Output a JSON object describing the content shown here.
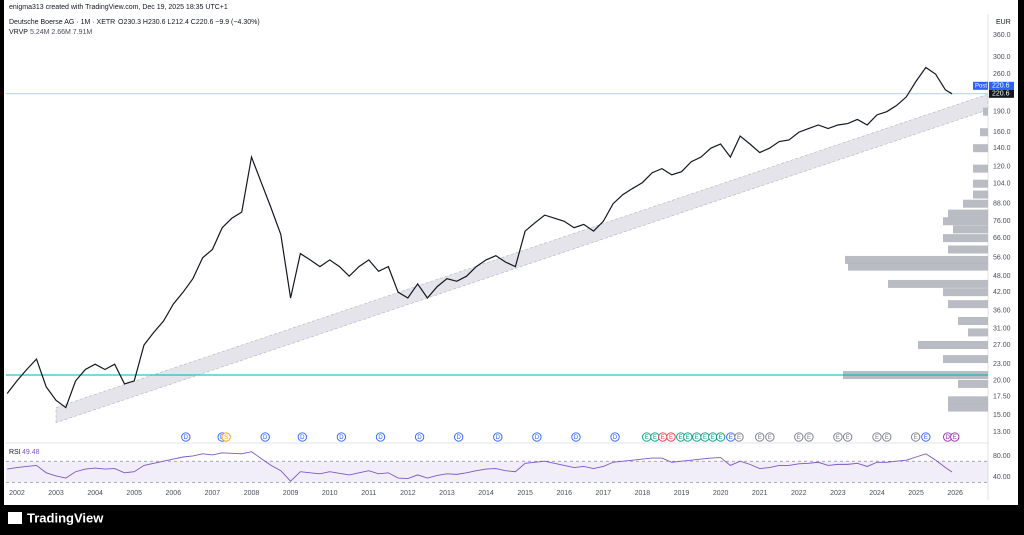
{
  "header": {
    "credit": "enigma313 created with TradingView.com, Dec 19, 2025 18:35 UTC+1",
    "symbol": "Deutsche Boerse AG · 1M · XETR",
    "ohlc": "O230.3  H230.6  L212.4  C220.6  −9.9 (−4.30%)",
    "indicator": "VRVP",
    "indicator_values": "5.24M  2.66M  7.91M",
    "currency": "EUR"
  },
  "footer": {
    "brand": "TradingView"
  },
  "chart_data": {
    "type": "line",
    "log_scale": true,
    "color": "#131722",
    "xlim": [
      2001.72,
      2026.84
    ],
    "ylim": [
      12.2,
      430
    ],
    "xticks": [
      2002,
      2003,
      2004,
      2005,
      2006,
      2007,
      2008,
      2009,
      2010,
      2011,
      2012,
      2013,
      2014,
      2015,
      2016,
      2017,
      2018,
      2019,
      2020,
      2021,
      2022,
      2023,
      2024,
      2025,
      2026
    ],
    "yticks": [
      {
        "value": 13,
        "label": "13.00"
      },
      {
        "value": 15,
        "label": "15.00"
      },
      {
        "value": 17.5,
        "label": "17.50"
      },
      {
        "value": 20,
        "label": "20.00"
      },
      {
        "value": 23,
        "label": "23.00"
      },
      {
        "value": 27,
        "label": "27.00"
      },
      {
        "value": 31,
        "label": "31.00"
      },
      {
        "value": 36,
        "label": "36.00"
      },
      {
        "value": 42,
        "label": "42.00"
      },
      {
        "value": 48,
        "label": "48.00"
      },
      {
        "value": 56,
        "label": "56.00"
      },
      {
        "value": 66,
        "label": "66.00"
      },
      {
        "value": 76,
        "label": "76.00"
      },
      {
        "value": 88,
        "label": "88.00"
      },
      {
        "value": 104,
        "label": "104.0"
      },
      {
        "value": 120,
        "label": "120.0"
      },
      {
        "value": 140,
        "label": "140.0"
      },
      {
        "value": 160,
        "label": "160.0"
      },
      {
        "value": 190,
        "label": "190.0"
      },
      {
        "value": 260,
        "label": "260.0"
      },
      {
        "value": 300,
        "label": "300.0"
      },
      {
        "value": 360,
        "label": "360.0"
      }
    ],
    "x": [
      2001.75,
      2002,
      2002.25,
      2002.5,
      2002.75,
      2003,
      2003.25,
      2003.5,
      2003.75,
      2004,
      2004.25,
      2004.5,
      2004.75,
      2005,
      2005.25,
      2005.5,
      2005.75,
      2006,
      2006.25,
      2006.5,
      2006.75,
      2007,
      2007.25,
      2007.5,
      2007.75,
      2008,
      2008.25,
      2008.5,
      2008.75,
      2009,
      2009.25,
      2009.5,
      2009.75,
      2010,
      2010.25,
      2010.5,
      2010.75,
      2011,
      2011.25,
      2011.5,
      2011.75,
      2012,
      2012.25,
      2012.5,
      2012.75,
      2013,
      2013.25,
      2013.5,
      2013.75,
      2014,
      2014.25,
      2014.5,
      2014.75,
      2015,
      2015.25,
      2015.5,
      2015.75,
      2016,
      2016.25,
      2016.5,
      2016.75,
      2017,
      2017.25,
      2017.5,
      2017.75,
      2018,
      2018.25,
      2018.5,
      2018.75,
      2019,
      2019.25,
      2019.5,
      2019.75,
      2020,
      2020.25,
      2020.5,
      2020.75,
      2021,
      2021.25,
      2021.5,
      2021.75,
      2022,
      2022.25,
      2022.5,
      2022.75,
      2023,
      2023.25,
      2023.5,
      2023.75,
      2024,
      2024.25,
      2024.5,
      2024.75,
      2025,
      2025.25,
      2025.5,
      2025.75,
      2025.92
    ],
    "values": [
      18,
      20,
      22,
      24,
      19,
      17,
      16,
      20,
      22,
      23,
      22,
      23,
      19.5,
      20,
      27,
      30,
      33,
      38,
      42,
      47,
      56,
      60,
      72,
      78,
      82,
      130,
      105,
      85,
      68,
      40,
      58,
      55,
      52,
      55,
      52,
      48,
      52,
      55,
      50,
      52,
      42,
      40,
      45,
      40,
      44,
      47,
      46,
      48,
      52,
      55,
      57,
      54,
      52,
      70,
      75,
      80,
      78,
      76,
      72,
      74,
      70,
      76,
      88,
      95,
      100,
      105,
      114,
      118,
      112,
      115,
      125,
      130,
      140,
      145,
      130,
      155,
      145,
      135,
      140,
      148,
      150,
      160,
      165,
      170,
      165,
      170,
      172,
      178,
      170,
      185,
      190,
      200,
      215,
      245,
      275,
      260,
      228,
      220.6
    ],
    "hlines": [
      {
        "value": 220.6,
        "color": "#4dd0e1"
      },
      {
        "value": 21,
        "color": "#00acc1"
      }
    ],
    "channel": {
      "x": [
        2003,
        2026.84
      ],
      "lower": [
        14.1,
        193
      ],
      "upper": [
        16,
        220
      ],
      "color": "#e4e4ea"
    },
    "post_label": "Post",
    "post_price": 220.6,
    "last_price": 220.6,
    "volume_profile": {
      "color": "#b2b5be",
      "prices": [
        16,
        17,
        19.5,
        21,
        24,
        27,
        30,
        33,
        38,
        42,
        45,
        52,
        55,
        60,
        66,
        71,
        76,
        81,
        88,
        95,
        104,
        118,
        140,
        160,
        190
      ],
      "volumes": [
        40,
        40,
        30,
        145,
        45,
        70,
        20,
        30,
        40,
        45,
        100,
        140,
        143,
        40,
        45,
        35,
        45,
        40,
        25,
        15,
        15,
        15,
        15,
        8,
        5
      ]
    },
    "events": [
      {
        "x": 2006.32,
        "label": "D",
        "color": "#2962ff"
      },
      {
        "x": 2007.25,
        "label": "D",
        "color": "#2962ff"
      },
      {
        "x": 2007.35,
        "label": "S",
        "color": "#ff9800"
      },
      {
        "x": 2008.35,
        "label": "D",
        "color": "#2962ff"
      },
      {
        "x": 2009.3,
        "label": "D",
        "color": "#2962ff"
      },
      {
        "x": 2010.3,
        "label": "D",
        "color": "#2962ff"
      },
      {
        "x": 2011.3,
        "label": "D",
        "color": "#2962ff"
      },
      {
        "x": 2012.3,
        "label": "D",
        "color": "#2962ff"
      },
      {
        "x": 2013.3,
        "label": "D",
        "color": "#2962ff"
      },
      {
        "x": 2014.3,
        "label": "D",
        "color": "#2962ff"
      },
      {
        "x": 2015.3,
        "label": "D",
        "color": "#2962ff"
      },
      {
        "x": 2016.3,
        "label": "D",
        "color": "#2962ff"
      },
      {
        "x": 2017.3,
        "label": "D",
        "color": "#2962ff"
      },
      {
        "x": 2018.11,
        "label": "E",
        "color": "#089981"
      },
      {
        "x": 2018.32,
        "label": "E",
        "color": "#089981"
      },
      {
        "x": 2018.52,
        "label": "E",
        "color": "#f23645"
      },
      {
        "x": 2018.73,
        "label": "E",
        "color": "#f23645"
      },
      {
        "x": 2018.98,
        "label": "E",
        "color": "#089981"
      },
      {
        "x": 2019.16,
        "label": "E",
        "color": "#089981"
      },
      {
        "x": 2019.39,
        "label": "E",
        "color": "#089981"
      },
      {
        "x": 2019.6,
        "label": "E",
        "color": "#089981"
      },
      {
        "x": 2019.8,
        "label": "E",
        "color": "#089981"
      },
      {
        "x": 2020.0,
        "label": "E",
        "color": "#089981"
      },
      {
        "x": 2020.26,
        "label": "E",
        "color": "#2962ff"
      },
      {
        "x": 2020.47,
        "label": "E",
        "color": "#787b86"
      },
      {
        "x": 2021.0,
        "label": "E",
        "color": "#787b86"
      },
      {
        "x": 2021.26,
        "label": "E",
        "color": "#787b86"
      },
      {
        "x": 2022.0,
        "label": "E",
        "color": "#787b86"
      },
      {
        "x": 2022.26,
        "label": "E",
        "color": "#787b86"
      },
      {
        "x": 2023.0,
        "label": "E",
        "color": "#787b86"
      },
      {
        "x": 2023.25,
        "label": "E",
        "color": "#787b86"
      },
      {
        "x": 2024.0,
        "label": "E",
        "color": "#787b86"
      },
      {
        "x": 2024.25,
        "label": "E",
        "color": "#787b86"
      },
      {
        "x": 2024.99,
        "label": "E",
        "color": "#787b86"
      },
      {
        "x": 2025.25,
        "label": "E",
        "color": "#2962ff"
      },
      {
        "x": 2025.81,
        "label": "D",
        "color": "#9c27b0"
      },
      {
        "x": 2025.99,
        "label": "E",
        "color": "#9c27b0"
      }
    ],
    "rsi": {
      "name": "RSI",
      "last": 49.48,
      "color": "#7e57c2",
      "ylim": [
        21,
        97
      ],
      "yticks": [
        {
          "value": 40,
          "label": "40.00"
        },
        {
          "value": 80,
          "label": "80.00"
        }
      ],
      "band": [
        30,
        70
      ],
      "values": [
        55,
        58,
        60,
        62,
        48,
        42,
        38,
        50,
        55,
        57,
        55,
        56,
        48,
        50,
        62,
        66,
        70,
        74,
        78,
        80,
        84,
        82,
        86,
        85,
        84,
        88,
        75,
        62,
        52,
        32,
        50,
        48,
        46,
        50,
        47,
        44,
        48,
        52,
        46,
        48,
        38,
        37,
        44,
        38,
        43,
        46,
        45,
        48,
        52,
        55,
        56,
        52,
        50,
        66,
        68,
        70,
        66,
        62,
        58,
        60,
        56,
        60,
        68,
        70,
        72,
        74,
        76,
        76,
        68,
        70,
        72,
        74,
        76,
        77,
        62,
        70,
        64,
        56,
        58,
        62,
        62,
        65,
        66,
        68,
        62,
        64,
        64,
        66,
        60,
        68,
        68,
        70,
        72,
        78,
        84,
        72,
        58,
        49.48
      ]
    }
  }
}
